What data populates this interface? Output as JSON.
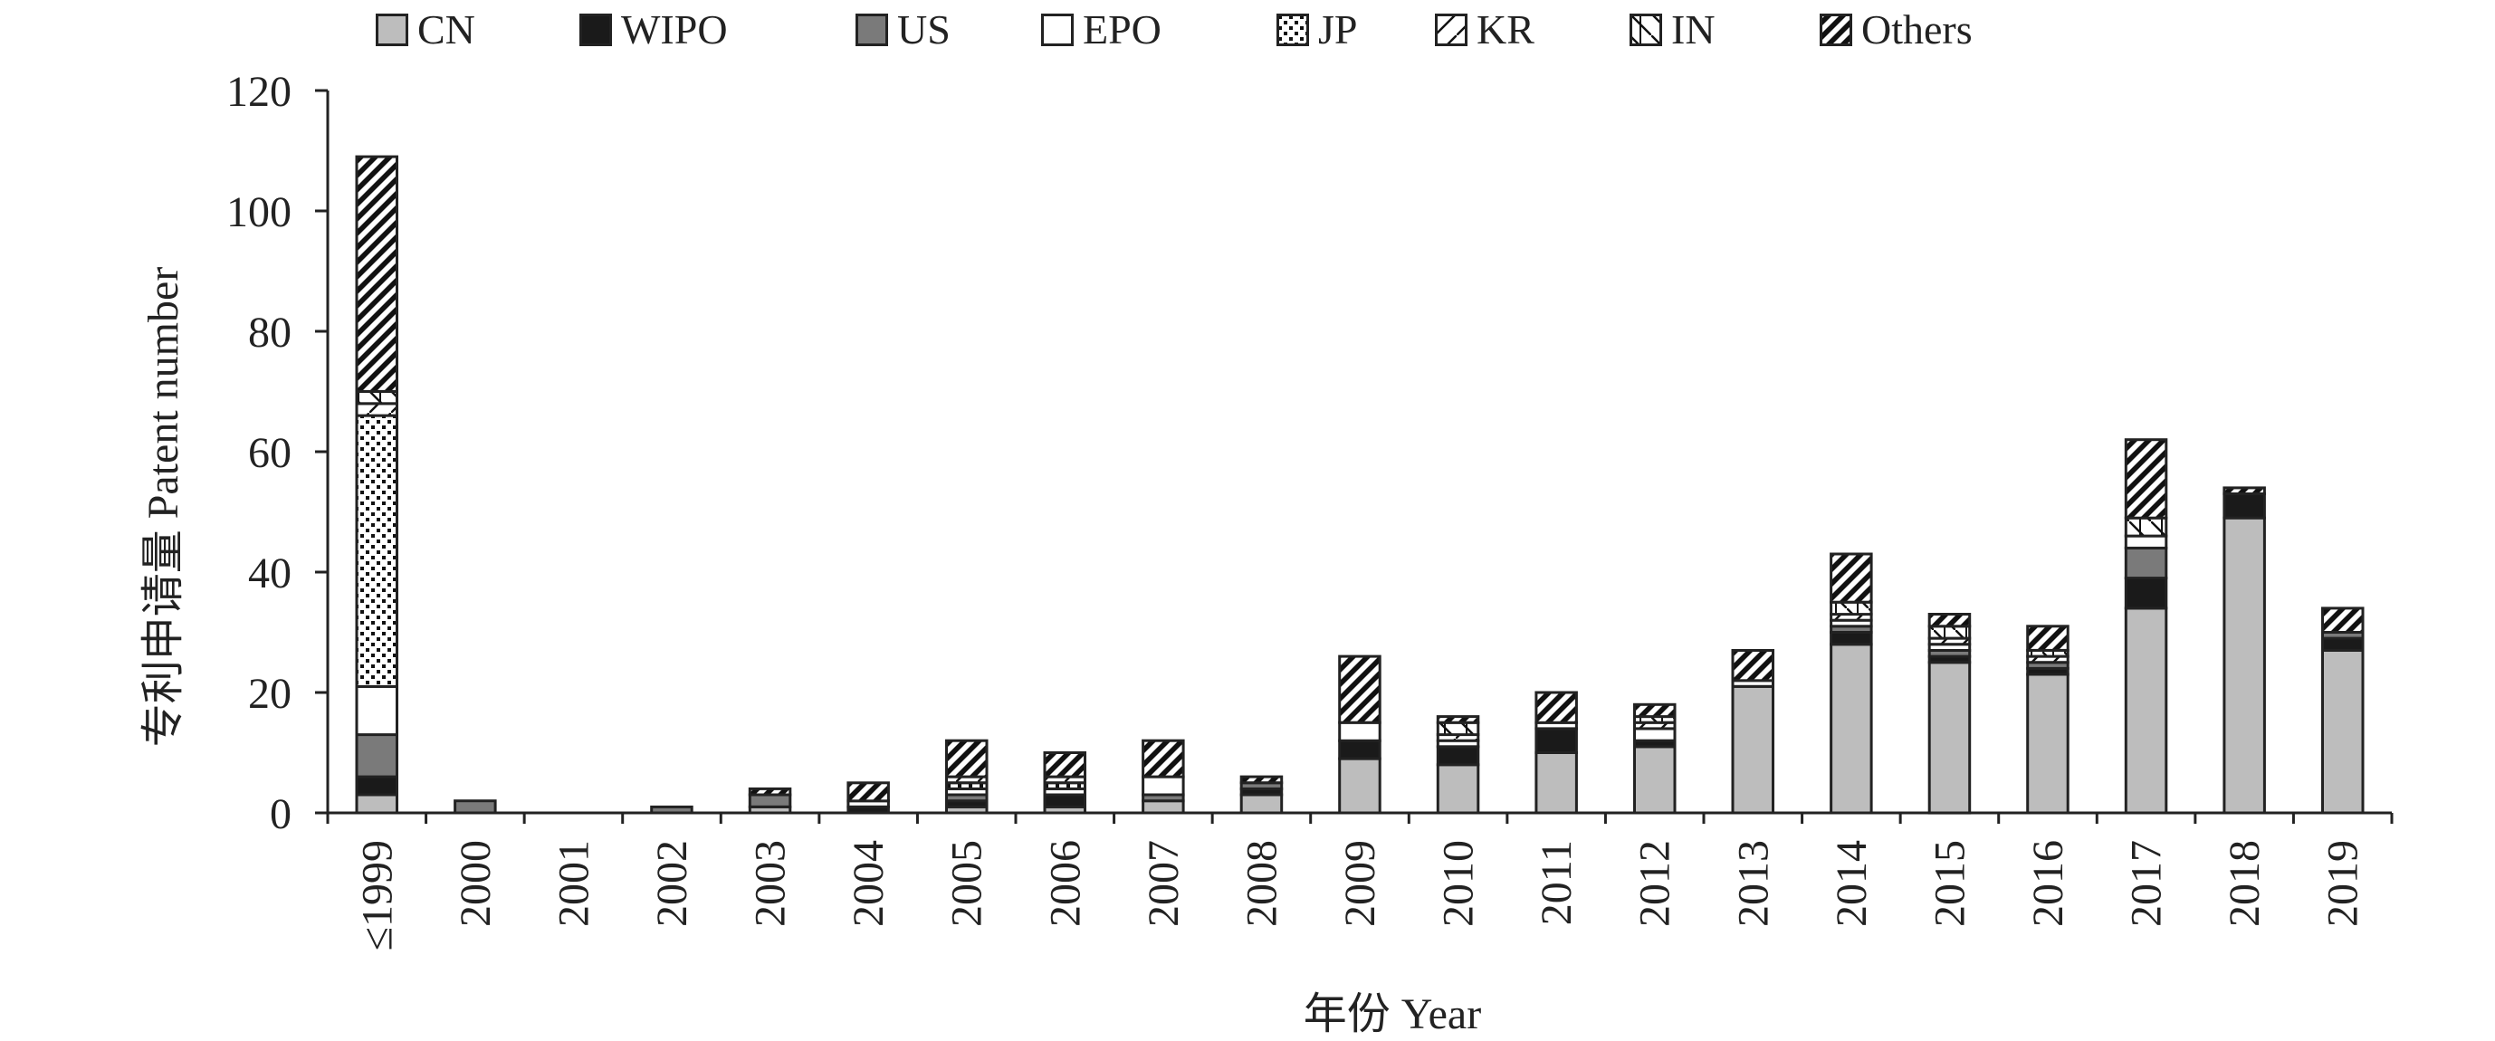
{
  "chart_data": {
    "type": "bar",
    "stacked": true,
    "title": "",
    "xlabel": "年份 Year",
    "ylabel": "专利申请量 Patent number",
    "ylim": [
      0,
      120
    ],
    "yticks": [
      0,
      20,
      40,
      60,
      80,
      100,
      120
    ],
    "grid": false,
    "legend_position": "top",
    "categories": [
      "≤1999",
      "2000",
      "2001",
      "2002",
      "2003",
      "2004",
      "2005",
      "2006",
      "2007",
      "2008",
      "2009",
      "2010",
      "2011",
      "2012",
      "2013",
      "2014",
      "2015",
      "2016",
      "2017",
      "2018",
      "2019"
    ],
    "series": [
      {
        "name": "CN",
        "pattern": "solid-gray",
        "values": [
          3,
          0,
          0,
          0,
          1,
          0,
          1,
          1,
          2,
          3,
          9,
          8,
          10,
          11,
          21,
          28,
          25,
          23,
          34,
          49,
          27
        ]
      },
      {
        "name": "WIPO",
        "pattern": "solid-black",
        "values": [
          3,
          0,
          0,
          0,
          0,
          1,
          1,
          2,
          0,
          1,
          3,
          3,
          4,
          1,
          0,
          2,
          1,
          1,
          5,
          4,
          2
        ]
      },
      {
        "name": "US",
        "pattern": "solid-darkgray",
        "values": [
          7,
          2,
          0,
          1,
          2,
          0,
          1,
          0,
          1,
          1,
          0,
          0,
          0,
          0,
          0,
          1,
          1,
          1,
          5,
          0,
          1
        ]
      },
      {
        "name": "EPO",
        "pattern": "white",
        "values": [
          8,
          0,
          0,
          0,
          0,
          1,
          1,
          1,
          3,
          0,
          3,
          1,
          1,
          2,
          1,
          1,
          1,
          0,
          2,
          0,
          0
        ]
      },
      {
        "name": "JP",
        "pattern": "dots",
        "values": [
          45,
          0,
          0,
          0,
          0,
          0,
          1,
          1,
          0,
          0,
          0,
          0,
          0,
          0,
          0,
          0,
          0,
          0,
          0,
          0,
          0
        ]
      },
      {
        "name": "KR",
        "pattern": "diagonal-up",
        "values": [
          2,
          0,
          0,
          0,
          0,
          0,
          1,
          1,
          0,
          0,
          0,
          1,
          0,
          1,
          0,
          1,
          1,
          1,
          0,
          0,
          0
        ]
      },
      {
        "name": "IN",
        "pattern": "diagonal-down",
        "values": [
          2,
          0,
          0,
          0,
          0,
          0,
          0,
          0,
          0,
          0,
          0,
          2,
          0,
          1,
          0,
          2,
          2,
          1,
          3,
          0,
          0
        ]
      },
      {
        "name": "Others",
        "pattern": "checker-stripe",
        "values": [
          39,
          0,
          0,
          0,
          1,
          3,
          6,
          4,
          6,
          1,
          11,
          1,
          5,
          2,
          5,
          8,
          2,
          4,
          13,
          1,
          4
        ]
      }
    ]
  },
  "colors": {
    "axis": "#222222",
    "bar_outline": "#222222",
    "cn_fill": "#bdbdbd",
    "wipo_fill": "#1a1a1a",
    "us_fill": "#7a7a7a",
    "white_fill": "#ffffff"
  }
}
